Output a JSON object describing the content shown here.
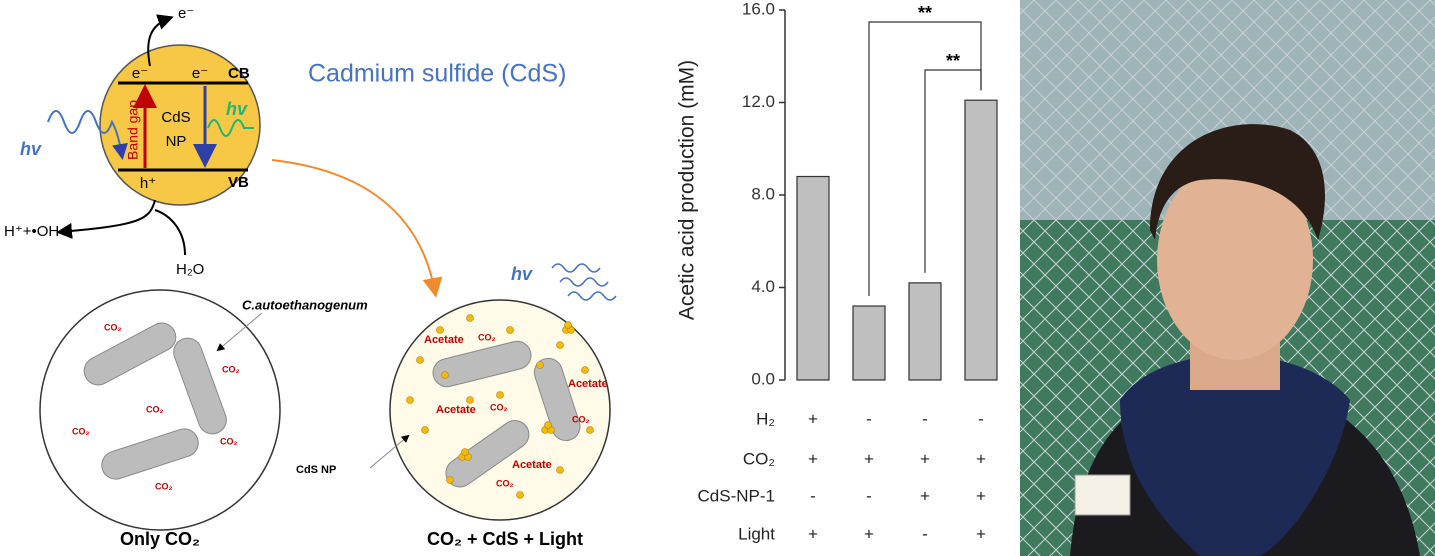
{
  "diagram": {
    "title": "Cadmium sulfide (CdS)",
    "electron_out": "e⁻",
    "electron_left": "e⁻",
    "electron_right": "e⁻",
    "cb": "CB",
    "vb": "VB",
    "hole": "h⁺",
    "band_gap": "Band gap",
    "np_line1": "CdS",
    "np_line2": "NP",
    "hv_in": "hv",
    "hv_out": "hv",
    "products": "H⁺+•OH",
    "water": "H₂O",
    "organism": "C.autoethanogenum",
    "co2_label": "CO₂",
    "acetate_label": "Acetate",
    "np_label": "CdS NP",
    "hv_light": "hv",
    "left_caption": "Only CO₂",
    "right_caption": "CO₂ + CdS + Light"
  },
  "chart_data": {
    "type": "bar",
    "ylabel": "Acetic acid production (mM)",
    "categories": [
      null,
      null,
      null,
      null
    ],
    "values": [
      8.8,
      3.2,
      4.2,
      12.1
    ],
    "color": "#bfbfbf",
    "ylim": [
      0,
      16
    ],
    "yticks": [
      {
        "value": 0,
        "label": "0.0"
      },
      {
        "value": 4,
        "label": "4.0"
      },
      {
        "value": 8,
        "label": "8.0"
      },
      {
        "value": 12,
        "label": "12.0"
      },
      {
        "value": 16,
        "label": "16.0"
      }
    ],
    "conditions": [
      {
        "label": "H₂",
        "values": [
          "+",
          "-",
          "-",
          "-"
        ]
      },
      {
        "label": "CO₂",
        "values": [
          "+",
          "+",
          "+",
          "+"
        ]
      },
      {
        "label": "CdS-NP-1",
        "values": [
          "-",
          "-",
          "+",
          "+"
        ]
      },
      {
        "label": "Light",
        "values": [
          "+",
          "+",
          "-",
          "+"
        ]
      }
    ],
    "annotations": [
      {
        "text": "**",
        "from": 1,
        "to": 3
      },
      {
        "text": "**",
        "from": 2,
        "to": 3
      }
    ]
  }
}
